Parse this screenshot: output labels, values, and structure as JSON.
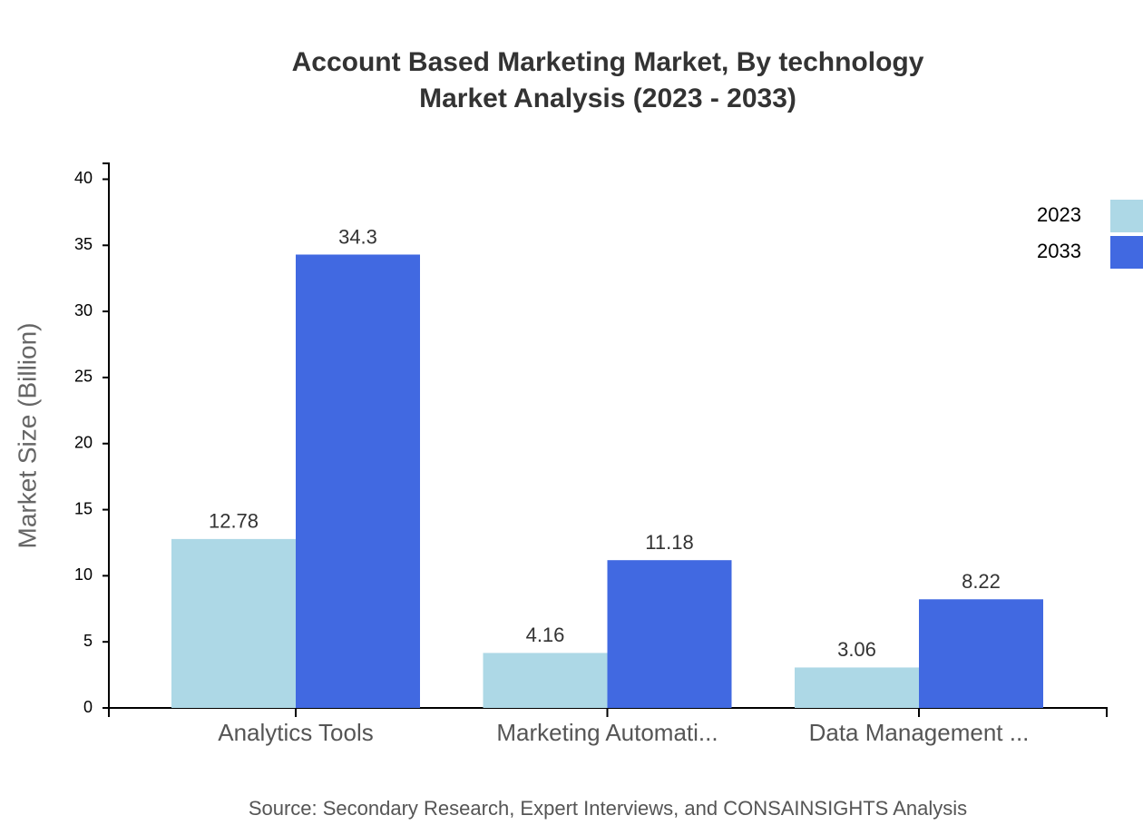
{
  "chart_data": {
    "type": "bar",
    "title": "Account Based Marketing Market, By technology",
    "subtitle": "Market Analysis (2023 - 2033)",
    "y_label": "Market Size (Billion)",
    "source": "Source: Secondary Research, Expert Interviews, and CONSAINSIGHTS Analysis",
    "categories": [
      "Analytics Tools",
      "Marketing Automati...",
      "Data Management ..."
    ],
    "series": [
      {
        "name": "2023",
        "color": "#add8e6",
        "values": [
          12.78,
          4.16,
          3.06
        ]
      },
      {
        "name": "2033",
        "color": "#4169e1",
        "values": [
          34.3,
          11.18,
          8.22
        ]
      }
    ],
    "ylim": [
      0,
      41.2
    ],
    "yticks": [
      0,
      5,
      10,
      15,
      20,
      25,
      30,
      35,
      40
    ],
    "legend": "top-right"
  }
}
